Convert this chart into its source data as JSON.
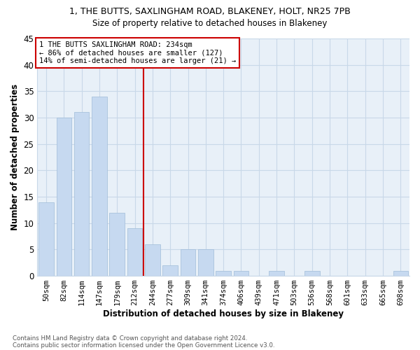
{
  "title_line1": "1, THE BUTTS, SAXLINGHAM ROAD, BLAKENEY, HOLT, NR25 7PB",
  "title_line2": "Size of property relative to detached houses in Blakeney",
  "xlabel": "Distribution of detached houses by size in Blakeney",
  "ylabel": "Number of detached properties",
  "annotation_line1": "1 THE BUTTS SAXLINGHAM ROAD: 234sqm",
  "annotation_line2": "← 86% of detached houses are smaller (127)",
  "annotation_line3": "14% of semi-detached houses are larger (21) →",
  "footnote1": "Contains HM Land Registry data © Crown copyright and database right 2024.",
  "footnote2": "Contains public sector information licensed under the Open Government Licence v3.0.",
  "bar_labels": [
    "50sqm",
    "82sqm",
    "114sqm",
    "147sqm",
    "179sqm",
    "212sqm",
    "244sqm",
    "277sqm",
    "309sqm",
    "341sqm",
    "374sqm",
    "406sqm",
    "439sqm",
    "471sqm",
    "503sqm",
    "536sqm",
    "568sqm",
    "601sqm",
    "633sqm",
    "665sqm",
    "698sqm"
  ],
  "bar_values": [
    14,
    30,
    31,
    34,
    12,
    9,
    6,
    2,
    5,
    5,
    1,
    1,
    0,
    1,
    0,
    1,
    0,
    0,
    0,
    0,
    1
  ],
  "bar_color": "#c6d9f0",
  "bar_edge_color": "#a0bcd8",
  "vline_x": 5.5,
  "vline_color": "#cc0000",
  "annotation_box_color": "#cc0000",
  "background_color": "#ffffff",
  "grid_color": "#c8d8e8",
  "ylim": [
    0,
    45
  ],
  "yticks": [
    0,
    5,
    10,
    15,
    20,
    25,
    30,
    35,
    40,
    45
  ]
}
